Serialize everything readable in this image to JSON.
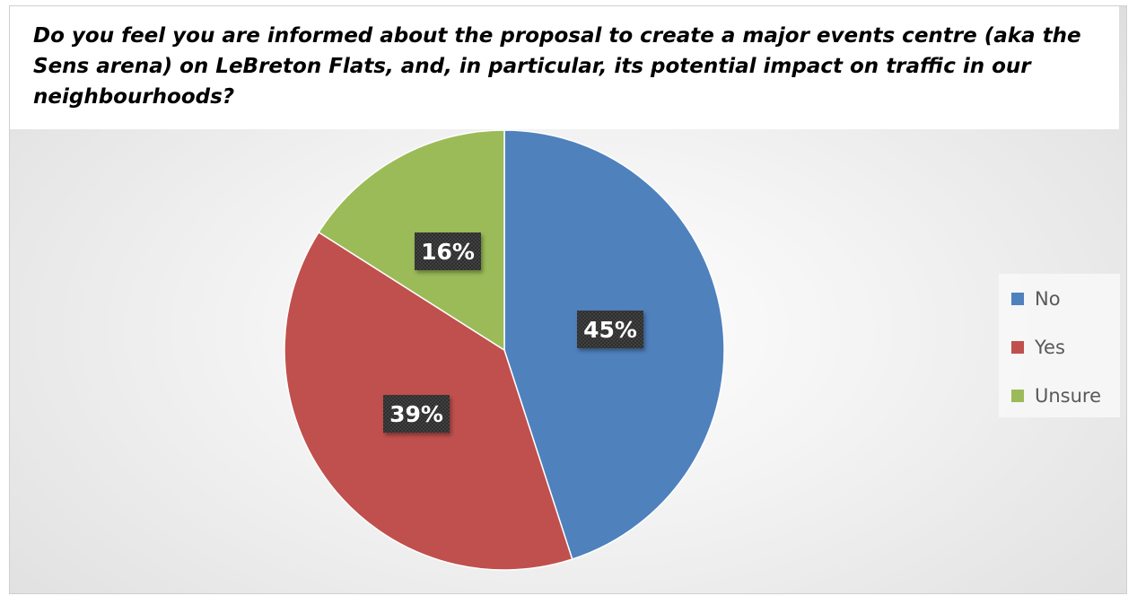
{
  "chart_data": {
    "type": "pie",
    "title": "Do you feel you are informed about the proposal to create a major events centre (aka the Sens arena) on LeBreton Flats, and, in particular, its potential impact on traffic in our neighbourhoods?",
    "categories": [
      "No",
      "Yes",
      "Unsure"
    ],
    "values": [
      45,
      39,
      16
    ],
    "data_labels": [
      "45%",
      "39%",
      "16%"
    ],
    "colors": [
      "#4F81BD",
      "#C0504D",
      "#9BBB59"
    ],
    "legend_position": "right",
    "label_style": "dark boxes with white bold text"
  }
}
